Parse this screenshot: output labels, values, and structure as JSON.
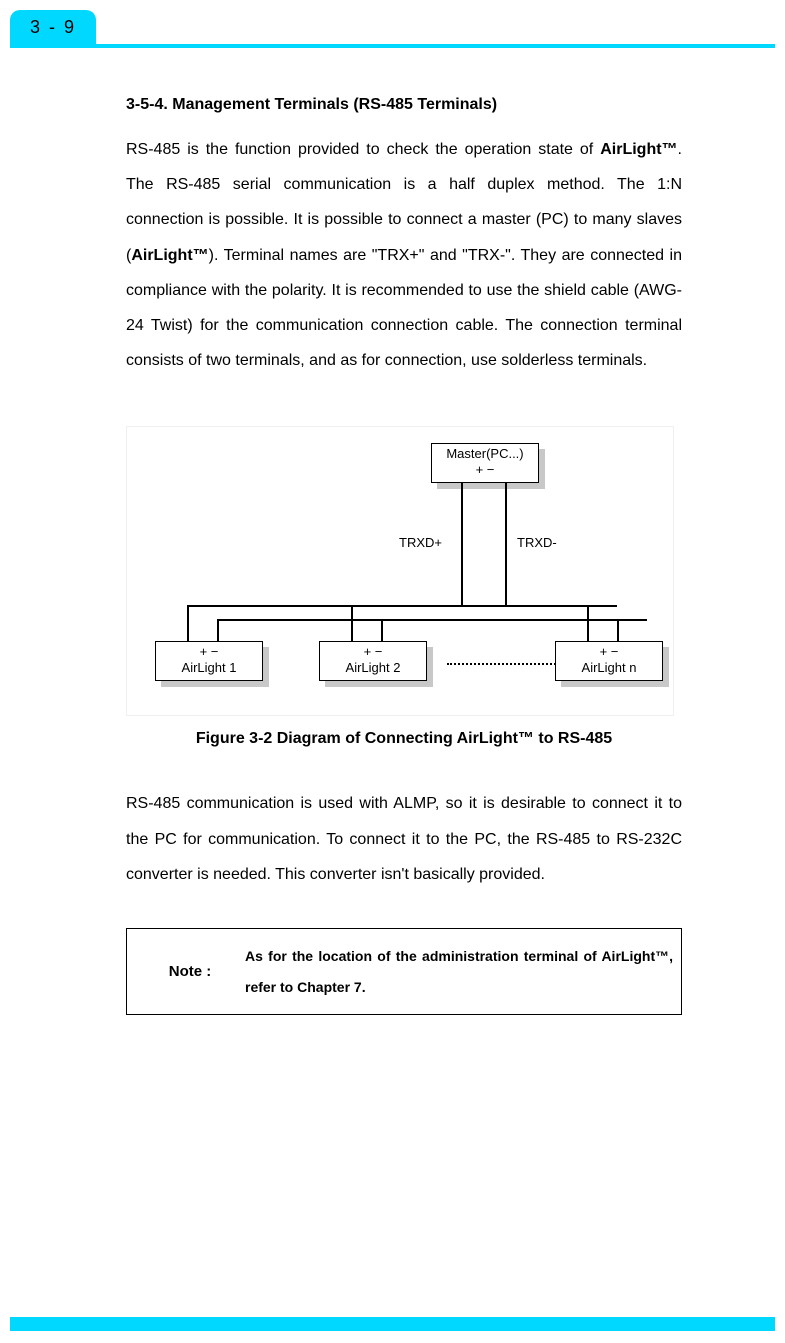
{
  "page_tab": "3 - 9",
  "heading": "3-5-4. Management Terminals (RS-485 Terminals)",
  "body_html": "RS-485 is the function provided to check the operation state of <span class=\"bold\">AirLight™</span>. The RS-485 serial communication is a half duplex method. The 1:N connection is possible. It is possible to connect a master (PC) to many slaves (<span class=\"bold\">AirLight™</span>). Terminal names are \"TRX+\" and \"TRX-\". They are connected in compliance with the polarity. It is recommended to use the shield cable (AWG-24 Twist) for the communication connection cable. The connection terminal consists of two terminals, and as for connection, use solderless terminals.",
  "figure": {
    "master": {
      "label": "Master(PC...)",
      "pm": "+   −"
    },
    "trx_plus": "TRXD+",
    "trx_minus": "TRXD-",
    "slaves": [
      {
        "pm": "+   −",
        "label": "AirLight 1"
      },
      {
        "pm": "+   −",
        "label": "AirLight 2"
      },
      {
        "pm": "+   −",
        "label": "AirLight n"
      }
    ]
  },
  "caption": "Figure 3-2 Diagram of Connecting AirLight™ to RS-485",
  "para2": "RS-485 communication is used with ALMP, so it is desirable to connect it to the PC for communication. To connect it to the PC, the RS-485 to RS-232C converter is needed. This converter isn't basically provided.",
  "note": {
    "label": "Note :",
    "text": "As for the location of the administration terminal of AirLight™, refer to Chapter 7."
  },
  "colors": {
    "accent": "#00d8ff",
    "shadow": "#c8c8c8",
    "text": "#000000",
    "background": "#ffffff"
  }
}
